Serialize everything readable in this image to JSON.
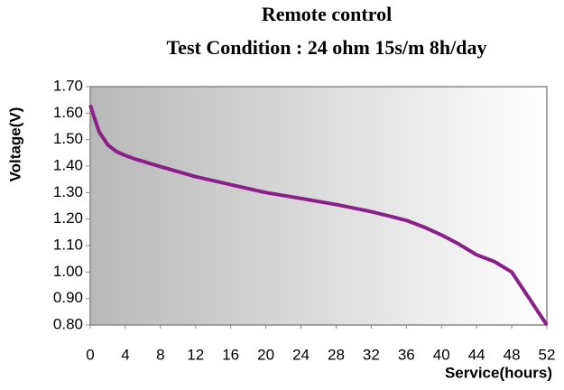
{
  "chart_data": {
    "type": "line",
    "title": "Remote control",
    "subtitle": "Test Condition : 24 ohm 15s/m 8h/day",
    "x_label": "Service(hours)",
    "y_label": "Voltage(V)",
    "x": [
      0,
      0.5,
      1,
      2,
      3,
      4,
      5,
      8,
      12,
      16,
      20,
      24,
      28,
      32,
      34,
      36,
      38,
      40,
      42,
      44,
      46,
      48,
      50,
      52
    ],
    "series": [
      {
        "name": "Voltage",
        "color": "#8a1f8a",
        "values": [
          1.63,
          1.58,
          1.53,
          1.48,
          1.455,
          1.44,
          1.428,
          1.398,
          1.36,
          1.33,
          1.3,
          1.278,
          1.255,
          1.228,
          1.212,
          1.195,
          1.17,
          1.14,
          1.105,
          1.065,
          1.04,
          1.0,
          0.9,
          0.8
        ]
      }
    ],
    "xlim": [
      0,
      52
    ],
    "xticks": [
      0,
      4,
      8,
      12,
      16,
      20,
      24,
      28,
      32,
      36,
      40,
      44,
      48,
      52
    ],
    "ylim": [
      0.8,
      1.7
    ],
    "yticks": [
      {
        "value": 0.8,
        "label": "0.80"
      },
      {
        "value": 0.9,
        "label": "0.90"
      },
      {
        "value": 1.0,
        "label": "1.00"
      },
      {
        "value": 1.1,
        "label": "1.10"
      },
      {
        "value": 1.2,
        "label": "1.20"
      },
      {
        "value": 1.3,
        "label": "1.30"
      },
      {
        "value": 1.4,
        "label": "1.40"
      },
      {
        "value": 1.5,
        "label": "1.50"
      },
      {
        "value": 1.6,
        "label": "1.60"
      },
      {
        "value": 1.7,
        "label": "1.70"
      }
    ],
    "grid": false
  }
}
